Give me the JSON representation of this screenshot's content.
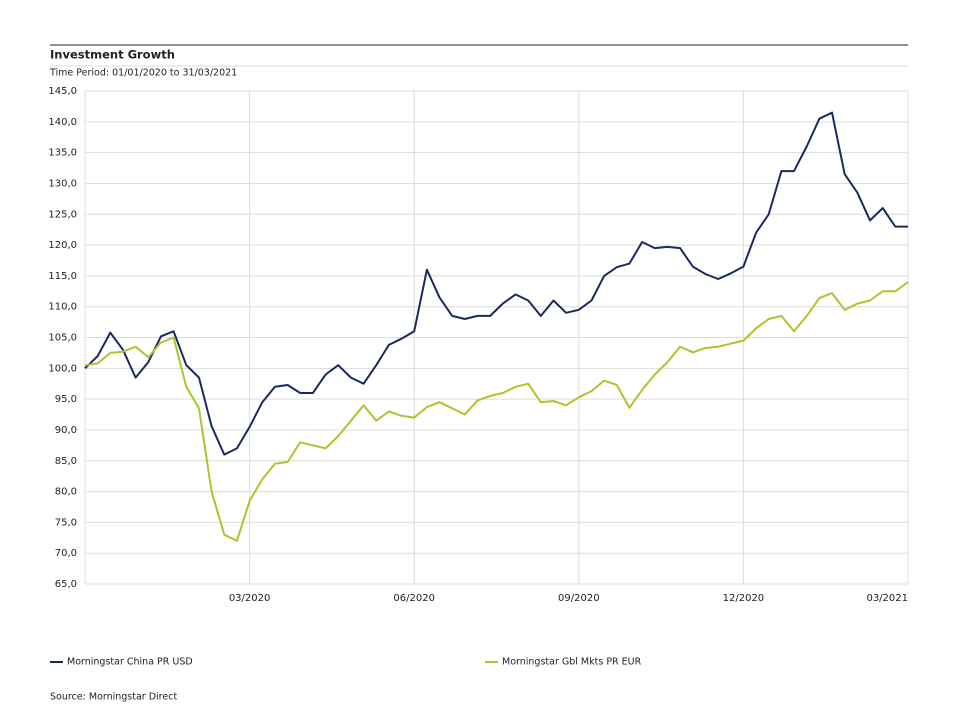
{
  "chart_data": {
    "type": "line",
    "title": "Investment Growth",
    "subtitle": "Time Period: 01/01/2020 to 31/03/2021",
    "source": "Source: Morningstar Direct",
    "categories": [
      null,
      null,
      null,
      null,
      null,
      null,
      null,
      null,
      null,
      null,
      null,
      null,
      null,
      "03/2020",
      null,
      null,
      null,
      null,
      null,
      null,
      null,
      null,
      null,
      null,
      null,
      null,
      "06/2020",
      null,
      null,
      null,
      null,
      null,
      null,
      null,
      null,
      null,
      null,
      null,
      null,
      "09/2020",
      null,
      null,
      null,
      null,
      null,
      null,
      null,
      null,
      null,
      null,
      null,
      null,
      "12/2020",
      null,
      null,
      null,
      null,
      null,
      null,
      null,
      null,
      null,
      null,
      null,
      null,
      "03/2021"
    ],
    "series": [
      {
        "name": "Morningstar China PR USD",
        "color": "#1b2a5e",
        "values": [
          100,
          102,
          105.8,
          103,
          98.5,
          101,
          105.2,
          106,
          100.5,
          98.5,
          90.6,
          86,
          87,
          90.5,
          94.5,
          97,
          97.3,
          96,
          96,
          99,
          100.5,
          98.5,
          97.5,
          100.5,
          103.8,
          104.8,
          106,
          116,
          111.5,
          108.5,
          108,
          108.5,
          108.5,
          110.5,
          112,
          111,
          108.5,
          111,
          109,
          109.5,
          111,
          115,
          116.4,
          117,
          120.5,
          119.5,
          119.7,
          119.5,
          116.5,
          115.3,
          114.5,
          115.4,
          116.5,
          122,
          125,
          132,
          132,
          136,
          140.5,
          141.5,
          131.5,
          128.5,
          124,
          126,
          123,
          123
        ]
      },
      {
        "name": "Morningstar Gbl Mkts PR EUR",
        "color": "#a9c72c",
        "values": [
          100.5,
          100.8,
          102.5,
          102.7,
          103.5,
          101.8,
          104.2,
          105,
          97,
          93.5,
          80,
          73,
          72,
          78.5,
          82,
          84.5,
          84.8,
          88,
          87.5,
          87,
          89,
          91.5,
          94,
          91.5,
          93,
          92.3,
          92,
          93.7,
          94.5,
          93.5,
          92.5,
          94.8,
          95.5,
          96,
          97,
          97.5,
          94.5,
          94.7,
          94,
          95.3,
          96.3,
          98,
          97.3,
          93.6,
          96.5,
          99,
          101,
          103.5,
          102.6,
          103.3,
          103.5,
          104,
          104.5,
          106.5,
          108,
          108.5,
          106,
          108.5,
          111.4,
          112.2,
          109.5,
          110.5,
          111,
          112.5,
          112.5,
          114
        ]
      }
    ],
    "ylim": [
      65,
      145
    ],
    "yticks": [
      {
        "value": 65,
        "label": "65,0"
      },
      {
        "value": 70,
        "label": "70,0"
      },
      {
        "value": 75,
        "label": "75,0"
      },
      {
        "value": 80,
        "label": "80,0"
      },
      {
        "value": 85,
        "label": "85,0"
      },
      {
        "value": 90,
        "label": "90,0"
      },
      {
        "value": 95,
        "label": "95,0"
      },
      {
        "value": 100,
        "label": "100,0"
      },
      {
        "value": 105,
        "label": "105,0"
      },
      {
        "value": 110,
        "label": "110,0"
      },
      {
        "value": 115,
        "label": "115,0"
      },
      {
        "value": 120,
        "label": "120,0"
      },
      {
        "value": 125,
        "label": "125,0"
      },
      {
        "value": 130,
        "label": "130,0"
      },
      {
        "value": 135,
        "label": "135,0"
      },
      {
        "value": 140,
        "label": "140,0"
      },
      {
        "value": 145,
        "label": "145,0"
      }
    ],
    "grid": true
  }
}
